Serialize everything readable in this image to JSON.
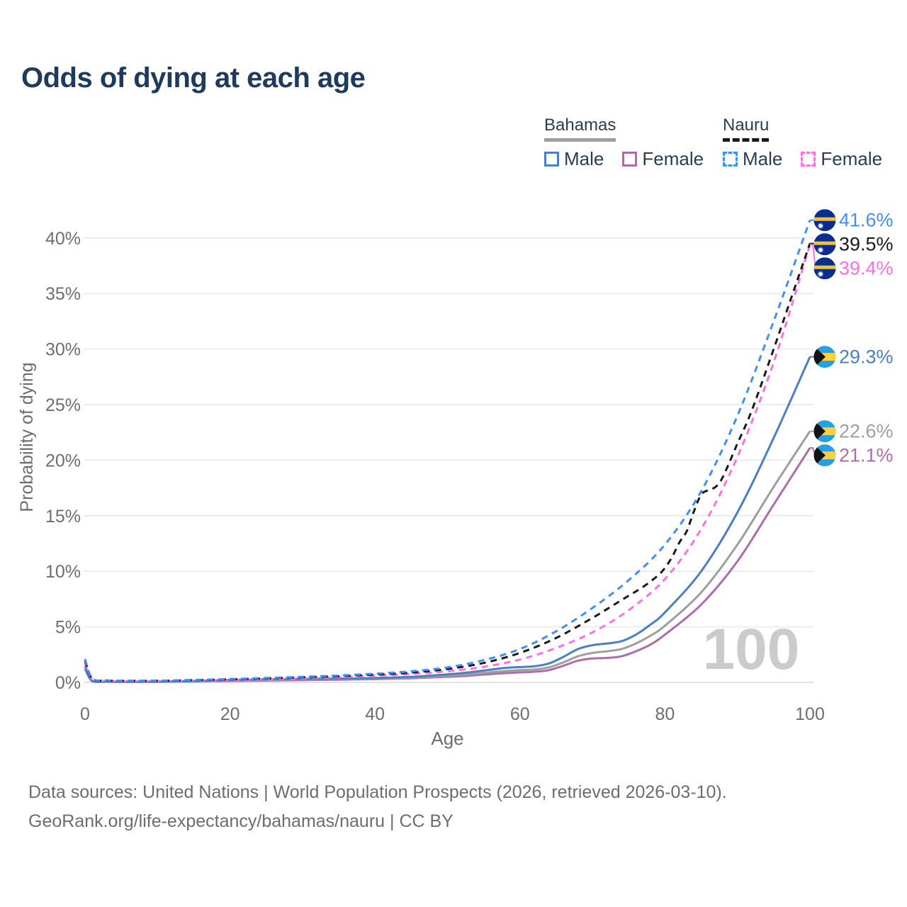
{
  "title": "Odds of dying at each age",
  "colors": {
    "title_text": "#1f3a5c",
    "legend_text": "#2b3c52",
    "axis_text": "#6e6e6e",
    "grid": "#ececec",
    "baseline": "#e2e2e2",
    "watermark": "#cbcbcb",
    "footer_text": "#6d6d6d"
  },
  "legend": {
    "groups": [
      {
        "label": "Bahamas",
        "line_style": "solid",
        "underline_color": "#9e9e9e",
        "items": [
          {
            "label": "Male",
            "color": "#4a7fc1"
          },
          {
            "label": "Female",
            "color": "#ad6dab"
          }
        ]
      },
      {
        "label": "Nauru",
        "line_style": "dashed",
        "underline_color": "#1a1a1a",
        "items": [
          {
            "label": "Male",
            "color": "#3f8efc"
          },
          {
            "label": "Female",
            "color": "#ff70e2"
          }
        ]
      }
    ]
  },
  "chart_data": {
    "type": "line",
    "title": "Odds of dying at each age",
    "xlabel": "Age",
    "ylabel": "Probability of dying",
    "xlim": [
      0,
      100
    ],
    "ylim": [
      0,
      42
    ],
    "xticks": [
      0,
      20,
      40,
      60,
      80,
      100
    ],
    "yticks": [
      0,
      5,
      10,
      15,
      20,
      25,
      30,
      35,
      40
    ],
    "ytick_suffix": "%",
    "grid": true,
    "legend_position": "top-right",
    "watermark": "100",
    "series": [
      {
        "name": "Nauru Male",
        "country": "Nauru",
        "sex": "Male",
        "color": "#3f8efc",
        "dash": true,
        "flag": "nauru",
        "end_label": "41.6%",
        "end_value": 41.6,
        "points": [
          [
            0,
            2.1
          ],
          [
            1,
            0.35
          ],
          [
            3,
            0.18
          ],
          [
            5,
            0.15
          ],
          [
            10,
            0.15
          ],
          [
            15,
            0.22
          ],
          [
            20,
            0.3
          ],
          [
            25,
            0.4
          ],
          [
            30,
            0.5
          ],
          [
            35,
            0.62
          ],
          [
            40,
            0.78
          ],
          [
            45,
            1.0
          ],
          [
            50,
            1.35
          ],
          [
            55,
            2.0
          ],
          [
            60,
            3.0
          ],
          [
            65,
            4.6
          ],
          [
            70,
            6.7
          ],
          [
            75,
            9.2
          ],
          [
            80,
            12.4
          ],
          [
            85,
            17.2
          ],
          [
            90,
            24.0
          ],
          [
            95,
            32.5
          ],
          [
            100,
            41.6
          ]
        ]
      },
      {
        "name": "Nauru",
        "country": "Nauru",
        "sex": "Both",
        "color": "#1a1a1a",
        "dash": true,
        "flag": "nauru",
        "end_label": "39.5%",
        "end_value": 39.5,
        "points": [
          [
            0,
            1.95
          ],
          [
            1,
            0.32
          ],
          [
            3,
            0.16
          ],
          [
            5,
            0.14
          ],
          [
            10,
            0.14
          ],
          [
            15,
            0.2
          ],
          [
            20,
            0.27
          ],
          [
            25,
            0.36
          ],
          [
            30,
            0.46
          ],
          [
            35,
            0.56
          ],
          [
            40,
            0.7
          ],
          [
            45,
            0.88
          ],
          [
            50,
            1.2
          ],
          [
            55,
            1.75
          ],
          [
            60,
            2.65
          ],
          [
            65,
            4.0
          ],
          [
            70,
            5.8
          ],
          [
            73,
            7.0
          ],
          [
            75,
            7.8
          ],
          [
            77,
            8.6
          ],
          [
            79,
            9.6
          ],
          [
            80,
            10.3
          ],
          [
            81,
            11.3
          ],
          [
            82,
            12.6
          ],
          [
            83,
            13.6
          ],
          [
            84,
            15.4
          ],
          [
            85,
            16.9
          ],
          [
            86,
            17.3
          ],
          [
            87,
            17.6
          ],
          [
            88,
            18.5
          ],
          [
            90,
            21.5
          ],
          [
            92,
            24.5
          ],
          [
            95,
            30.0
          ],
          [
            97,
            33.8
          ],
          [
            100,
            39.5
          ]
        ]
      },
      {
        "name": "Nauru Female",
        "country": "Nauru",
        "sex": "Female",
        "color": "#ff70e2",
        "dash": true,
        "flag": "nauru",
        "end_label": "39.4%",
        "end_value": 39.4,
        "points": [
          [
            0,
            1.75
          ],
          [
            1,
            0.3
          ],
          [
            3,
            0.15
          ],
          [
            5,
            0.12
          ],
          [
            10,
            0.12
          ],
          [
            15,
            0.16
          ],
          [
            20,
            0.21
          ],
          [
            25,
            0.28
          ],
          [
            30,
            0.37
          ],
          [
            35,
            0.47
          ],
          [
            40,
            0.6
          ],
          [
            45,
            0.75
          ],
          [
            50,
            1.0
          ],
          [
            55,
            1.4
          ],
          [
            60,
            2.05
          ],
          [
            65,
            3.1
          ],
          [
            70,
            4.5
          ],
          [
            75,
            6.5
          ],
          [
            80,
            9.3
          ],
          [
            85,
            13.8
          ],
          [
            90,
            20.3
          ],
          [
            95,
            28.8
          ],
          [
            100,
            39.4
          ]
        ]
      },
      {
        "name": "Bahamas Male",
        "country": "Bahamas",
        "sex": "Male",
        "color": "#4a7fc1",
        "dash": false,
        "flag": "bahamas",
        "end_label": "29.3%",
        "end_value": 29.3,
        "points": [
          [
            0,
            1.45
          ],
          [
            1,
            0.12
          ],
          [
            3,
            0.07
          ],
          [
            5,
            0.06
          ],
          [
            10,
            0.07
          ],
          [
            15,
            0.12
          ],
          [
            20,
            0.22
          ],
          [
            25,
            0.28
          ],
          [
            30,
            0.31
          ],
          [
            35,
            0.34
          ],
          [
            40,
            0.39
          ],
          [
            45,
            0.5
          ],
          [
            50,
            0.72
          ],
          [
            53,
            0.9
          ],
          [
            56,
            1.15
          ],
          [
            58,
            1.3
          ],
          [
            60,
            1.38
          ],
          [
            62,
            1.45
          ],
          [
            64,
            1.7
          ],
          [
            66,
            2.3
          ],
          [
            68,
            3.0
          ],
          [
            70,
            3.35
          ],
          [
            72,
            3.5
          ],
          [
            74,
            3.7
          ],
          [
            76,
            4.3
          ],
          [
            78,
            5.2
          ],
          [
            80,
            6.3
          ],
          [
            85,
            10.0
          ],
          [
            90,
            15.3
          ],
          [
            95,
            22.0
          ],
          [
            100,
            29.3
          ]
        ]
      },
      {
        "name": "Bahamas",
        "country": "Bahamas",
        "sex": "Both",
        "color": "#9e9e9e",
        "dash": false,
        "flag": "bahamas",
        "end_label": "22.6%",
        "end_value": 22.6,
        "points": [
          [
            0,
            1.3
          ],
          [
            1,
            0.11
          ],
          [
            3,
            0.06
          ],
          [
            5,
            0.05
          ],
          [
            10,
            0.06
          ],
          [
            15,
            0.1
          ],
          [
            20,
            0.17
          ],
          [
            25,
            0.22
          ],
          [
            30,
            0.25
          ],
          [
            35,
            0.28
          ],
          [
            40,
            0.33
          ],
          [
            45,
            0.42
          ],
          [
            50,
            0.6
          ],
          [
            53,
            0.73
          ],
          [
            56,
            0.92
          ],
          [
            58,
            1.02
          ],
          [
            60,
            1.1
          ],
          [
            62,
            1.16
          ],
          [
            64,
            1.35
          ],
          [
            66,
            1.8
          ],
          [
            68,
            2.35
          ],
          [
            70,
            2.65
          ],
          [
            72,
            2.8
          ],
          [
            74,
            3.0
          ],
          [
            76,
            3.5
          ],
          [
            78,
            4.2
          ],
          [
            80,
            5.1
          ],
          [
            85,
            8.1
          ],
          [
            90,
            12.4
          ],
          [
            95,
            17.6
          ],
          [
            100,
            22.6
          ]
        ]
      },
      {
        "name": "Bahamas Female",
        "country": "Bahamas",
        "sex": "Female",
        "color": "#ad6dab",
        "dash": false,
        "flag": "bahamas",
        "end_label": "21.1%",
        "end_value": 21.1,
        "points": [
          [
            0,
            1.2
          ],
          [
            1,
            0.1
          ],
          [
            3,
            0.06
          ],
          [
            5,
            0.05
          ],
          [
            10,
            0.05
          ],
          [
            15,
            0.08
          ],
          [
            20,
            0.12
          ],
          [
            25,
            0.16
          ],
          [
            30,
            0.2
          ],
          [
            35,
            0.24
          ],
          [
            40,
            0.29
          ],
          [
            45,
            0.37
          ],
          [
            50,
            0.5
          ],
          [
            53,
            0.6
          ],
          [
            56,
            0.75
          ],
          [
            58,
            0.83
          ],
          [
            60,
            0.9
          ],
          [
            62,
            0.96
          ],
          [
            64,
            1.1
          ],
          [
            66,
            1.5
          ],
          [
            68,
            1.95
          ],
          [
            70,
            2.15
          ],
          [
            72,
            2.2
          ],
          [
            74,
            2.35
          ],
          [
            76,
            2.8
          ],
          [
            78,
            3.4
          ],
          [
            80,
            4.3
          ],
          [
            85,
            7.0
          ],
          [
            90,
            10.9
          ],
          [
            95,
            16.0
          ],
          [
            100,
            21.1
          ]
        ]
      }
    ]
  },
  "flag_colors": {
    "nauru_blue": "#0b2d8f",
    "nauru_gold": "#f5c324",
    "nauru_star": "#ffffff",
    "bahamas_aqua": "#25a0e2",
    "bahamas_gold": "#ffcf3f",
    "bahamas_black": "#141414"
  },
  "footer": {
    "line1": "Data sources: United Nations | World Population Prospects (2026, retrieved 2026-03-10).",
    "line2": "GeoRank.org/life-expectancy/bahamas/nauru | CC BY"
  }
}
